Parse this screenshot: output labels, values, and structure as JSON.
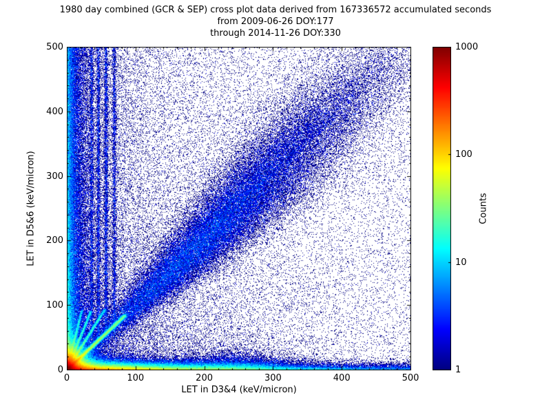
{
  "title": {
    "line1": "1980 day combined (GCR & SEP) cross plot data derived from 167336572 accumulated seconds",
    "line2": "from 2009-06-26 DOY:177",
    "line3": "through 2014-11-26 DOY:330"
  },
  "chart_data": {
    "type": "heatmap",
    "title": "1980 day combined (GCR & SEP) cross plot data derived from 167336572 accumulated seconds",
    "subtitle_from": "from 2009-06-26 DOY:177",
    "subtitle_through": "through 2014-11-26 DOY:330",
    "days": 1980,
    "accumulated_seconds": 167336572,
    "date_from": "2009-06-26",
    "doy_from": 177,
    "date_through": "2014-11-26",
    "doy_through": 330,
    "xlabel": "LET in D3&4 (keV/micron)",
    "ylabel": "LET in D5&6 (keV/micron)",
    "xlim": [
      0,
      500
    ],
    "ylim": [
      0,
      500
    ],
    "x_ticks": [
      0,
      100,
      200,
      300,
      400,
      500
    ],
    "y_ticks": [
      0,
      100,
      200,
      300,
      400,
      500
    ],
    "minor_tick_step": 20,
    "grid": false,
    "colorbar": {
      "label": "Counts",
      "scale": "log",
      "min": 1,
      "max": 1000,
      "ticks": [
        1,
        10,
        100,
        1000
      ],
      "colormap": "jet"
    },
    "seed": 1980,
    "features": [
      {
        "name": "origin-hotspot",
        "kind": "exp2d",
        "x0": 0,
        "y0": 0,
        "sx": 10,
        "sy": 10,
        "points": 130000
      },
      {
        "name": "bottom-band",
        "kind": "band_x",
        "x_scale": 100,
        "y_scale": 4,
        "points": 130000
      },
      {
        "name": "bottom-band-far",
        "kind": "uniform_band",
        "x_min": 0,
        "x_max": 500,
        "y_scale": 3.5,
        "points": 14000
      },
      {
        "name": "bottom-bump",
        "kind": "blob",
        "x0": 245,
        "sx": 40,
        "y_scale": 8,
        "points": 9000
      },
      {
        "name": "left-column",
        "kind": "band_y",
        "x_scale": 7,
        "y_pow": 1.6,
        "points": 40000
      },
      {
        "name": "left-column-wide",
        "kind": "band_y",
        "x_scale": 22,
        "y_pow": 1.2,
        "points": 22000
      },
      {
        "name": "left-scatter",
        "kind": "band_y",
        "x_scale": 140,
        "y_pow": 1.0,
        "points": 14000
      },
      {
        "name": "diagonal-streak",
        "kind": "ray",
        "slope": 1.0,
        "max_len": 85,
        "bias": 2.0,
        "width": 1.6,
        "points": 26000
      },
      {
        "name": "fan-ray-1",
        "kind": "ray",
        "slope": 1.7,
        "max_len": 55,
        "bias": 2.0,
        "width": 1.3,
        "points": 9000
      },
      {
        "name": "fan-ray-2",
        "kind": "ray",
        "slope": 2.6,
        "max_len": 35,
        "bias": 2.0,
        "width": 1.2,
        "points": 7000
      },
      {
        "name": "fan-ray-3",
        "kind": "ray",
        "slope": 4.2,
        "max_len": 22,
        "bias": 2.0,
        "width": 1.1,
        "points": 5500
      },
      {
        "name": "proton-line-1",
        "kind": "vline",
        "x": 36,
        "sigma": 1.3,
        "y_min": 50,
        "points": 2400
      },
      {
        "name": "proton-line-2",
        "kind": "vline",
        "x": 46,
        "sigma": 1.3,
        "y_min": 50,
        "points": 2800
      },
      {
        "name": "proton-line-3",
        "kind": "vline",
        "x": 57,
        "sigma": 1.4,
        "y_min": 60,
        "points": 3200
      },
      {
        "name": "proton-line-4",
        "kind": "vline",
        "x": 69,
        "sigma": 1.5,
        "y_min": 60,
        "points": 2600
      },
      {
        "name": "diagonal-band",
        "kind": "diag_band",
        "t_mean": 210,
        "t_sigma": 95,
        "width_base": 3,
        "width_grow": 0.09,
        "points": 52000
      },
      {
        "name": "diagonal-spray",
        "kind": "diag_spray",
        "t_mean": 300,
        "t_sigma": 80,
        "up_sigma": 55,
        "points": 8000
      },
      {
        "name": "diagonal-band-far",
        "kind": "diag_band",
        "t_mean": 400,
        "t_sigma": 70,
        "width_base": 12,
        "width_grow": 0.03,
        "points": 6000
      },
      {
        "name": "near-scatter",
        "kind": "exp2d",
        "x0": 0,
        "y0": 0,
        "sx": 120,
        "sy": 120,
        "points": 13000
      },
      {
        "name": "background-scatter",
        "kind": "uniform",
        "points": 15000
      }
    ]
  },
  "colors": {
    "background": "#ffffff",
    "axes": "#000000",
    "count_one": "#00007f"
  }
}
